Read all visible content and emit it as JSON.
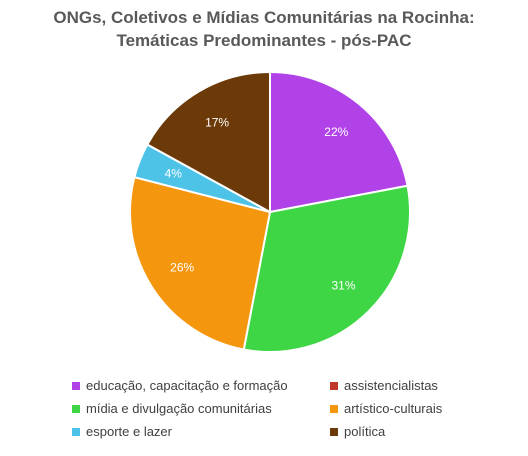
{
  "chart_data": {
    "type": "pie",
    "title": [
      "ONGs, Coletivos e Mídias Comunitárias na Rocinha:",
      "Temáticas Predominantes -  pós-PAC"
    ],
    "start_angle_deg": 0,
    "direction": "clockwise",
    "slices": [
      {
        "name": "educação, capacitação e formação",
        "value": 22,
        "label": "22%",
        "color": "#b042e8"
      },
      {
        "name": "assistencialistas",
        "value": 0,
        "label": "",
        "color": "#c0392b"
      },
      {
        "name": "mídia e divulgação comunitárias",
        "value": 31,
        "label": "31%",
        "color": "#3fd646"
      },
      {
        "name": "artístico-culturais",
        "value": 26,
        "label": "26%",
        "color": "#f5960f"
      },
      {
        "name": "esporte e lazer",
        "value": 4,
        "label": "4%",
        "color": "#4dc3e8"
      },
      {
        "name": "política",
        "value": 17,
        "label": "17%",
        "color": "#6b3a08"
      }
    ],
    "legend_position": "bottom"
  }
}
